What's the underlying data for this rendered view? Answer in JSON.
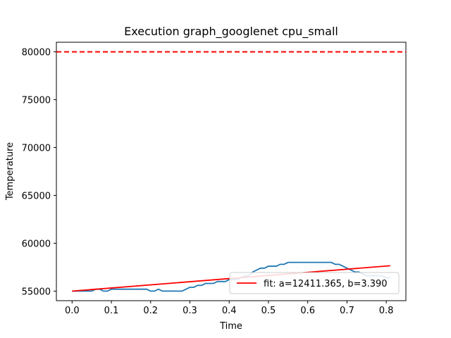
{
  "chart_data": {
    "type": "line",
    "title": "Execution graph_googlenet cpu_small",
    "xlabel": "Time",
    "ylabel": "Temperature",
    "xlim": [
      -0.04,
      0.85
    ],
    "ylim": [
      54000,
      81000
    ],
    "xticks": [
      0.0,
      0.1,
      0.2,
      0.3,
      0.4,
      0.5,
      0.6,
      0.7,
      0.8
    ],
    "xtick_labels": [
      "0.0",
      "0.1",
      "0.2",
      "0.3",
      "0.4",
      "0.5",
      "0.6",
      "0.7",
      "0.8"
    ],
    "yticks": [
      55000,
      60000,
      65000,
      70000,
      75000,
      80000
    ],
    "ytick_labels": [
      "55000",
      "60000",
      "65000",
      "70000",
      "75000",
      "80000"
    ],
    "threshold": {
      "y": 80000,
      "color": "#ff0000",
      "style": "dashed"
    },
    "series": [
      {
        "color": "#1f77b4",
        "x": [
          0.0,
          0.01,
          0.02,
          0.03,
          0.04,
          0.05,
          0.06,
          0.07,
          0.08,
          0.09,
          0.1,
          0.11,
          0.12,
          0.13,
          0.14,
          0.15,
          0.16,
          0.17,
          0.18,
          0.19,
          0.2,
          0.21,
          0.22,
          0.23,
          0.24,
          0.25,
          0.26,
          0.27,
          0.28,
          0.29,
          0.3,
          0.31,
          0.32,
          0.33,
          0.34,
          0.35,
          0.36,
          0.37,
          0.38,
          0.39,
          0.4,
          0.41,
          0.42,
          0.43,
          0.44,
          0.45,
          0.46,
          0.47,
          0.48,
          0.49,
          0.5,
          0.51,
          0.52,
          0.53,
          0.54,
          0.55,
          0.56,
          0.57,
          0.58,
          0.59,
          0.6,
          0.61,
          0.62,
          0.63,
          0.64,
          0.65,
          0.66,
          0.67,
          0.68,
          0.69,
          0.7,
          0.71,
          0.72,
          0.73,
          0.74,
          0.75,
          0.76,
          0.77,
          0.78,
          0.79,
          0.8,
          0.81
        ],
        "y": [
          55000,
          55000,
          55000,
          55000,
          55000,
          55000,
          55200,
          55200,
          55000,
          55000,
          55200,
          55200,
          55200,
          55200,
          55200,
          55200,
          55200,
          55200,
          55200,
          55200,
          55000,
          55000,
          55200,
          55000,
          55000,
          55000,
          55000,
          55000,
          55000,
          55200,
          55400,
          55400,
          55600,
          55600,
          55800,
          55800,
          55800,
          56000,
          56000,
          56000,
          56200,
          56200,
          56200,
          56400,
          56600,
          56600,
          57000,
          57200,
          57400,
          57400,
          57600,
          57600,
          57600,
          57800,
          57800,
          58000,
          58000,
          58000,
          58000,
          58000,
          58000,
          58000,
          58000,
          58000,
          58000,
          58000,
          58000,
          57800,
          57800,
          57600,
          57400,
          57200,
          57000,
          57000,
          56800,
          56600,
          56600,
          56600,
          56600,
          56600,
          56400,
          56400
        ]
      }
    ],
    "fit": {
      "label": "fit: a=12411.365, b=3.390",
      "color": "#ff0000",
      "x": [
        0.0,
        0.81
      ],
      "y": [
        55000,
        57650
      ]
    },
    "legend_position": "bottom-right",
    "grid": false
  }
}
